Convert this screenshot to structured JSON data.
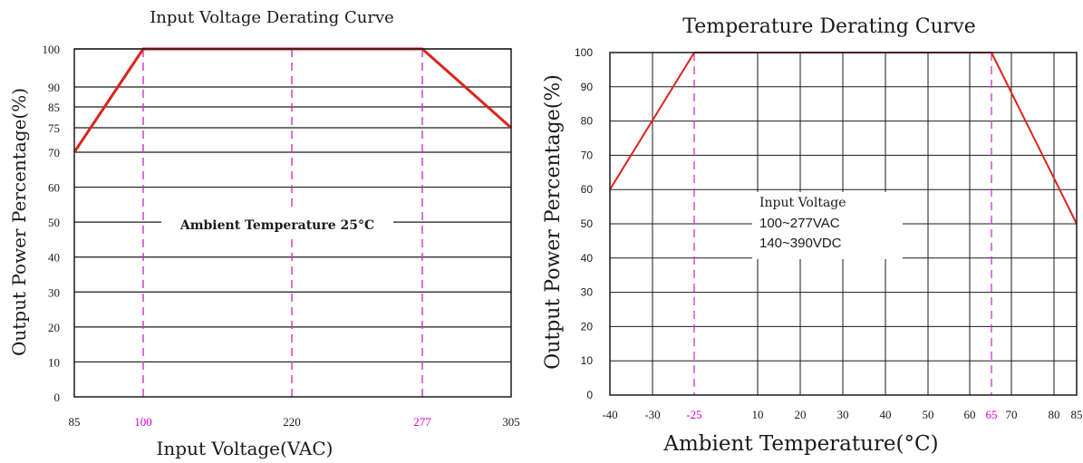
{
  "colors": {
    "curve": "#d9261c",
    "marker": "#cc33cc",
    "highlight": "#d400d4",
    "grid": "#1a1a1a"
  },
  "chart_data": [
    {
      "type": "line",
      "title": "Input Voltage Derating Curve",
      "xlabel": "Input Voltage(VAC)",
      "ylabel": "Output Power Percentage(%)",
      "x_ticks": [
        "85",
        "100",
        "220",
        "277",
        "305"
      ],
      "x_ticks_highlighted": [
        "100",
        "277"
      ],
      "y_ticks": [
        "0",
        "10",
        "20",
        "30",
        "40",
        "50",
        "60",
        "70",
        "75",
        "85",
        "90",
        "100"
      ],
      "annotation": "Ambient Temperature 25°C",
      "grid": true,
      "series": [
        {
          "x": [
            85,
            100,
            277,
            305
          ],
          "y": [
            70,
            100,
            100,
            75
          ]
        }
      ],
      "marker_lines_x": [
        100,
        220,
        277
      ]
    },
    {
      "type": "line",
      "title": "Temperature Derating Curve",
      "xlabel": "Ambient Temperature(°C)",
      "ylabel": "Output Power Percentage(%)",
      "x_ticks": [
        "-40",
        "-30",
        "-25",
        "10",
        "20",
        "30",
        "40",
        "50",
        "60",
        "65",
        "70",
        "80",
        "85"
      ],
      "x_ticks_highlighted": [
        "-25",
        "65"
      ],
      "y_ticks": [
        "0",
        "10",
        "20",
        "30",
        "40",
        "50",
        "60",
        "70",
        "80",
        "90",
        "100"
      ],
      "annotation_lines": [
        "Input Voltage",
        "100~277VAC",
        "140~390VDC"
      ],
      "grid": true,
      "series": [
        {
          "x": [
            -40,
            -25,
            65,
            85
          ],
          "y": [
            60,
            100,
            100,
            50
          ]
        }
      ],
      "marker_lines_x": [
        -25,
        65
      ]
    }
  ]
}
